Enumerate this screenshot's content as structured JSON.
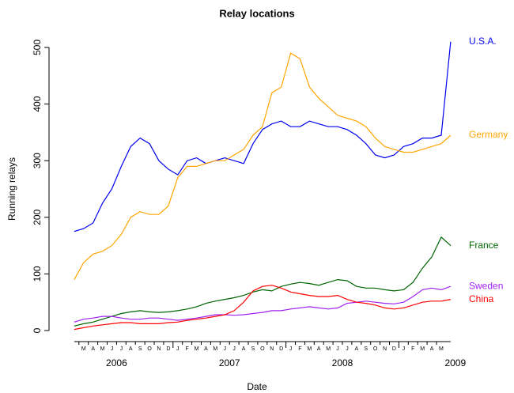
{
  "chart_data": {
    "type": "line",
    "title": "Relay locations",
    "x_label": "Date",
    "y_label": "Running relays",
    "x": [
      "2006-02",
      "2006-03",
      "2006-04",
      "2006-05",
      "2006-06",
      "2006-07",
      "2006-08",
      "2006-09",
      "2006-10",
      "2006-11",
      "2006-12",
      "2007-01",
      "2007-02",
      "2007-03",
      "2007-04",
      "2007-05",
      "2007-06",
      "2007-07",
      "2007-08",
      "2007-09",
      "2007-10",
      "2007-11",
      "2007-12",
      "2008-01",
      "2008-02",
      "2008-03",
      "2008-04",
      "2008-05",
      "2008-06",
      "2008-07",
      "2008-08",
      "2008-09",
      "2008-10",
      "2008-11",
      "2008-12",
      "2009-01",
      "2009-02",
      "2009-03",
      "2009-04",
      "2009-05",
      "2009-06"
    ],
    "series": [
      {
        "name": "U.S.A.",
        "color": "#0000ee",
        "values": [
          175,
          180,
          190,
          225,
          250,
          290,
          325,
          340,
          330,
          300,
          285,
          275,
          300,
          305,
          295,
          300,
          305,
          300,
          295,
          330,
          355,
          365,
          370,
          360,
          360,
          370,
          365,
          360,
          360,
          355,
          345,
          330,
          310,
          305,
          310,
          325,
          330,
          340,
          340,
          345,
          510
        ]
      },
      {
        "name": "Germany",
        "color": "#ffa500",
        "values": [
          90,
          120,
          135,
          140,
          150,
          170,
          200,
          210,
          205,
          205,
          220,
          270,
          290,
          290,
          295,
          300,
          300,
          310,
          320,
          345,
          360,
          420,
          430,
          490,
          480,
          430,
          410,
          395,
          380,
          375,
          370,
          360,
          340,
          325,
          320,
          315,
          315,
          320,
          325,
          330,
          345
        ]
      },
      {
        "name": "France",
        "color": "#006400",
        "values": [
          8,
          12,
          15,
          20,
          25,
          30,
          33,
          35,
          33,
          32,
          33,
          35,
          38,
          42,
          48,
          52,
          55,
          58,
          62,
          68,
          72,
          70,
          78,
          82,
          85,
          83,
          80,
          85,
          90,
          88,
          78,
          75,
          75,
          72,
          70,
          72,
          85,
          110,
          130,
          165,
          150
        ]
      },
      {
        "name": "Sweden",
        "color": "#a020f0",
        "values": [
          15,
          20,
          22,
          25,
          25,
          22,
          20,
          20,
          22,
          22,
          20,
          18,
          20,
          22,
          25,
          28,
          28,
          27,
          28,
          30,
          32,
          35,
          35,
          38,
          40,
          42,
          40,
          38,
          40,
          48,
          50,
          52,
          50,
          48,
          47,
          50,
          60,
          72,
          75,
          72,
          78
        ]
      },
      {
        "name": "China",
        "color": "#ff0000",
        "values": [
          2,
          5,
          8,
          10,
          12,
          14,
          14,
          12,
          12,
          12,
          14,
          15,
          18,
          20,
          22,
          25,
          28,
          35,
          50,
          70,
          78,
          80,
          75,
          68,
          65,
          62,
          60,
          60,
          62,
          55,
          50,
          48,
          45,
          40,
          38,
          40,
          45,
          50,
          52,
          52,
          55
        ]
      }
    ],
    "ylim": [
      0,
      500
    ],
    "yticks": [
      0,
      100,
      200,
      300,
      400,
      500
    ],
    "month_ticks": [
      {
        "value": "2006-03",
        "label": "M"
      },
      {
        "value": "2006-04",
        "label": "A"
      },
      {
        "value": "2006-05",
        "label": "M"
      },
      {
        "value": "2006-06",
        "label": "J"
      },
      {
        "value": "2006-07",
        "label": "J"
      },
      {
        "value": "2006-08",
        "label": "A"
      },
      {
        "value": "2006-09",
        "label": "S"
      },
      {
        "value": "2006-10",
        "label": "O"
      },
      {
        "value": "2006-11",
        "label": "N"
      },
      {
        "value": "2006-12",
        "label": "D"
      },
      {
        "value": "2007-01",
        "label": "J"
      },
      {
        "value": "2007-02",
        "label": "F"
      },
      {
        "value": "2007-03",
        "label": "M"
      },
      {
        "value": "2007-04",
        "label": "A"
      },
      {
        "value": "2007-05",
        "label": "M"
      },
      {
        "value": "2007-06",
        "label": "J"
      },
      {
        "value": "2007-07",
        "label": "J"
      },
      {
        "value": "2007-08",
        "label": "A"
      },
      {
        "value": "2007-09",
        "label": "S"
      },
      {
        "value": "2007-10",
        "label": "O"
      },
      {
        "value": "2007-11",
        "label": "N"
      },
      {
        "value": "2007-12",
        "label": "D"
      },
      {
        "value": "2008-01",
        "label": "J"
      },
      {
        "value": "2008-02",
        "label": "F"
      },
      {
        "value": "2008-03",
        "label": "M"
      },
      {
        "value": "2008-04",
        "label": "A"
      },
      {
        "value": "2008-05",
        "label": "M"
      },
      {
        "value": "2008-06",
        "label": "J"
      },
      {
        "value": "2008-07",
        "label": "J"
      },
      {
        "value": "2008-08",
        "label": "A"
      },
      {
        "value": "2008-09",
        "label": "S"
      },
      {
        "value": "2008-10",
        "label": "O"
      },
      {
        "value": "2008-11",
        "label": "N"
      },
      {
        "value": "2008-12",
        "label": "D"
      },
      {
        "value": "2009-01",
        "label": "J"
      },
      {
        "value": "2009-02",
        "label": "F"
      },
      {
        "value": "2009-03",
        "label": "M"
      },
      {
        "value": "2009-04",
        "label": "A"
      },
      {
        "value": "2009-05",
        "label": "M"
      }
    ],
    "year_ticks": [
      2006,
      2007,
      2008,
      2009
    ]
  }
}
